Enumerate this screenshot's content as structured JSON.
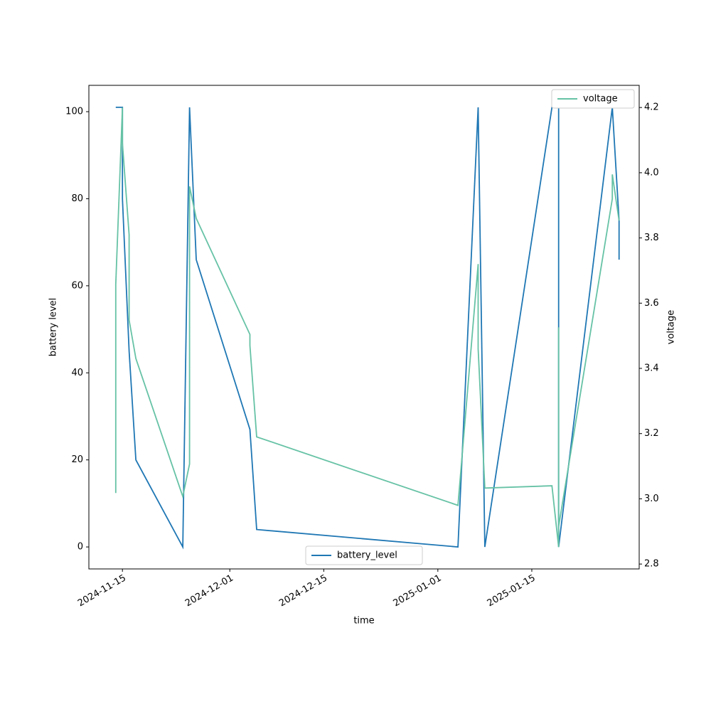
{
  "chart_data": {
    "type": "line",
    "xlabel": "time",
    "ylabel": "battery level",
    "y2label": "voltage",
    "xlim": [
      "2024-11-10",
      "2025-01-31"
    ],
    "xticks": [
      "2024-11-15",
      "2024-12-01",
      "2024-12-15",
      "2025-01-01",
      "2025-01-15"
    ],
    "ylim": [
      -5.05,
      106.05
    ],
    "yticks": [
      0,
      20,
      40,
      60,
      80,
      100
    ],
    "y2lim": [
      2.785,
      4.268
    ],
    "y2ticks": [
      2.8,
      {
        "value": 3.0,
        "label": "3.0"
      },
      3.2,
      3.4,
      3.6,
      3.8,
      {
        "value": 4.0,
        "label": "4.0"
      },
      4.2
    ],
    "series": [
      {
        "name": "battery_level",
        "color": "#1f77b4",
        "legend": "lower center",
        "x": [
          "2024-11-14",
          "2024-11-15",
          "2024-11-15",
          "2024-11-16",
          "2024-11-17",
          "2024-11-24",
          "2024-11-25",
          "2024-11-25",
          "2024-11-26",
          "2024-12-04",
          "2024-12-05",
          "2025-01-04",
          "2025-01-07",
          "2025-01-08",
          "2025-01-18",
          "2025-01-19",
          "2025-01-19",
          "2025-01-19",
          "2025-01-27",
          "2025-01-28",
          "2025-01-28"
        ],
        "values": [
          101,
          101,
          80,
          45,
          20,
          0,
          101,
          101,
          66,
          27,
          4,
          0,
          101,
          0,
          101,
          101,
          29,
          0,
          101,
          75,
          66
        ]
      },
      {
        "name": "voltage",
        "color": "#66c2a5",
        "axis": "y2",
        "legend": "upper right",
        "x": [
          "2024-11-14",
          "2024-11-14",
          "2024-11-15",
          "2024-11-15",
          "2024-11-16",
          "2024-11-16",
          "2024-11-17",
          "2024-11-24",
          "2024-11-25",
          "2024-11-25",
          "2024-11-26",
          "2024-12-04",
          "2024-12-04",
          "2024-12-05",
          "2025-01-04",
          "2025-01-07",
          "2025-01-07",
          "2025-01-08",
          "2025-01-18",
          "2025-01-19",
          "2025-01-19",
          "2025-01-19",
          "2025-01-27",
          "2025-01-27",
          "2025-01-28"
        ],
        "values": [
          3.018,
          3.657,
          4.2,
          4.09,
          3.81,
          3.548,
          3.43,
          3.007,
          3.107,
          3.958,
          3.86,
          3.504,
          3.47,
          3.19,
          2.98,
          3.72,
          3.46,
          3.033,
          3.04,
          2.852,
          3.526,
          2.915,
          3.92,
          3.995,
          3.853
        ]
      }
    ]
  }
}
